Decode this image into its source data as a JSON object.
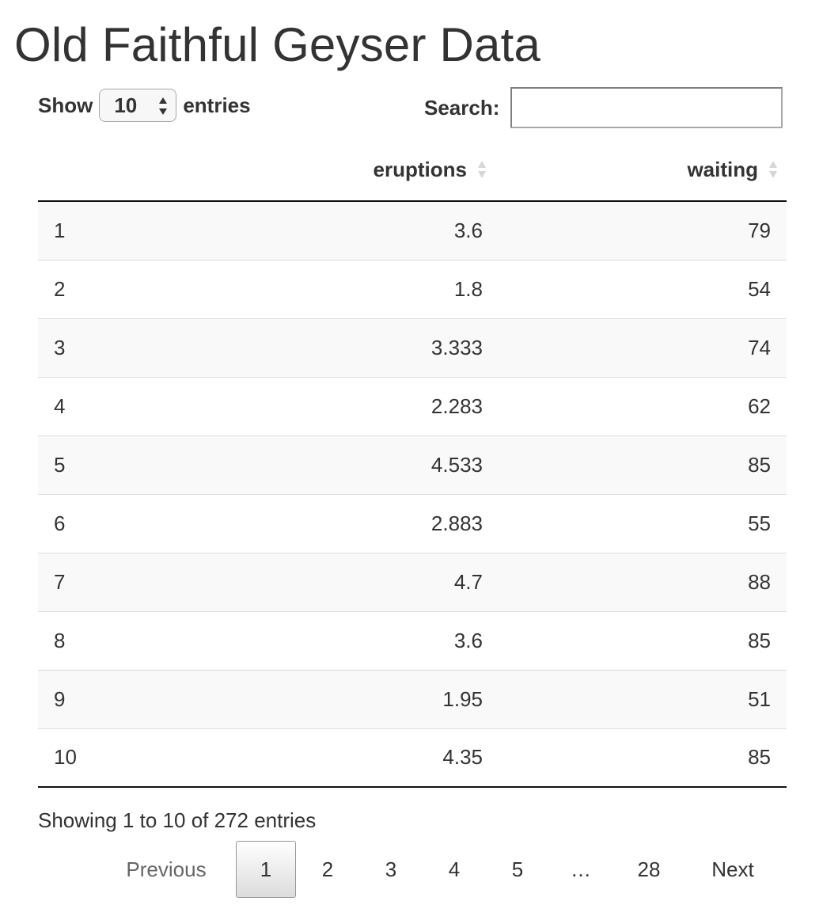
{
  "page_title": "Old Faithful Geyser Data",
  "length_control": {
    "show_label": "Show",
    "selected_value": "10",
    "entries_label": "entries"
  },
  "search": {
    "label": "Search:",
    "value": ""
  },
  "table": {
    "columns": [
      "",
      "eruptions",
      "waiting"
    ],
    "rows": [
      {
        "index": "1",
        "eruptions": "3.6",
        "waiting": "79"
      },
      {
        "index": "2",
        "eruptions": "1.8",
        "waiting": "54"
      },
      {
        "index": "3",
        "eruptions": "3.333",
        "waiting": "74"
      },
      {
        "index": "4",
        "eruptions": "2.283",
        "waiting": "62"
      },
      {
        "index": "5",
        "eruptions": "4.533",
        "waiting": "85"
      },
      {
        "index": "6",
        "eruptions": "2.883",
        "waiting": "55"
      },
      {
        "index": "7",
        "eruptions": "4.7",
        "waiting": "88"
      },
      {
        "index": "8",
        "eruptions": "3.6",
        "waiting": "85"
      },
      {
        "index": "9",
        "eruptions": "1.95",
        "waiting": "51"
      },
      {
        "index": "10",
        "eruptions": "4.35",
        "waiting": "85"
      }
    ]
  },
  "info": "Showing 1 to 10 of 272 entries",
  "pagination": {
    "previous": "Previous",
    "pages": [
      "1",
      "2",
      "3",
      "4",
      "5"
    ],
    "ellipsis": "…",
    "last_page": "28",
    "next": "Next",
    "current": "1"
  },
  "colors": {
    "text": "#333333",
    "stripe": "#f9f9f9",
    "border": "#dddddd"
  }
}
